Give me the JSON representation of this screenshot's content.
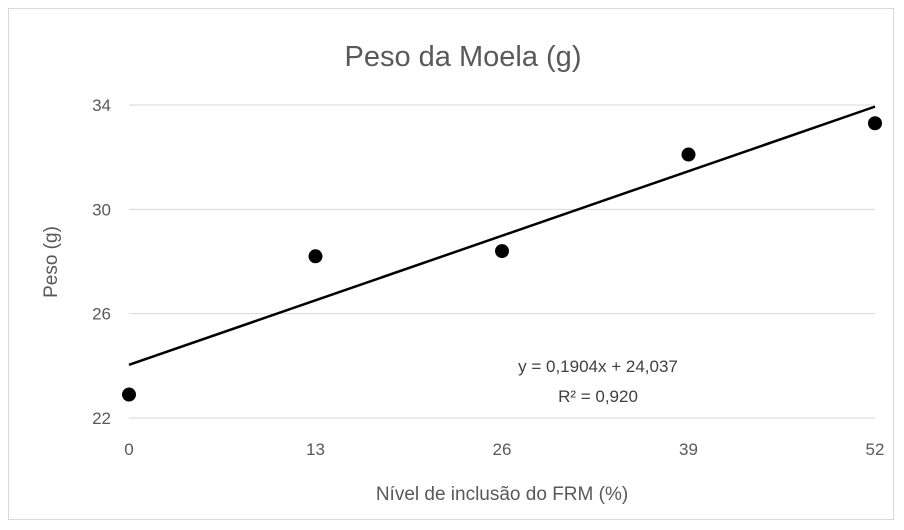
{
  "chart_data": {
    "type": "scatter",
    "title": "Peso da Moela (g)",
    "xlabel": "Nível de inclusão do FRM (%)",
    "ylabel": "Peso (g)",
    "x_ticks": [
      "0",
      "13",
      "26",
      "39",
      "52"
    ],
    "y_ticks": [
      "22",
      "26",
      "30",
      "34"
    ],
    "xlim": [
      0,
      52
    ],
    "ylim": [
      22,
      34
    ],
    "grid": true,
    "legend": "none",
    "series": [
      {
        "x": [
          0,
          13,
          26,
          39,
          52
        ],
        "y": [
          22.9,
          28.2,
          28.4,
          32.1,
          33.3
        ]
      }
    ],
    "trendline": {
      "type": "linear",
      "slope": 0.1904,
      "intercept": 24.037,
      "equation": "y = 0,1904x + 24,037",
      "r_squared": "R² = 0,920"
    },
    "colors": {
      "points": "#000000",
      "trendline": "#000000",
      "grid": "#d9d9d9",
      "text": "#595959"
    }
  }
}
